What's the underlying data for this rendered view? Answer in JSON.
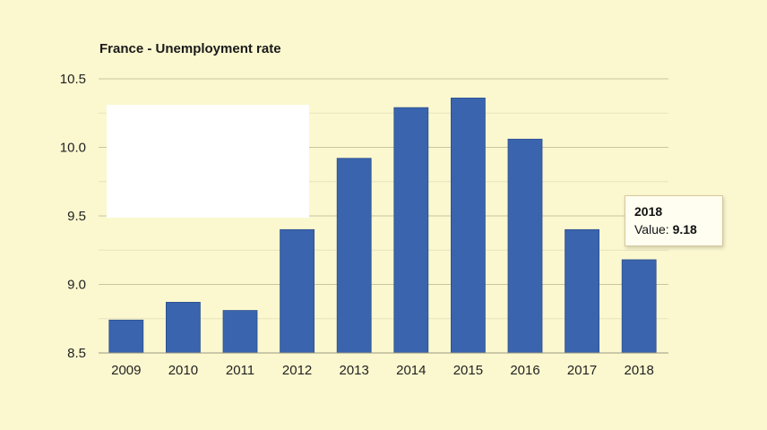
{
  "chart_data": {
    "type": "bar",
    "title": "France - Unemployment rate",
    "categories": [
      "2009",
      "2010",
      "2011",
      "2012",
      "2013",
      "2014",
      "2015",
      "2016",
      "2017",
      "2018"
    ],
    "values": [
      8.74,
      8.87,
      8.81,
      9.4,
      9.92,
      10.29,
      10.36,
      10.06,
      9.4,
      9.18
    ],
    "ylim": [
      8.5,
      10.5
    ],
    "yticks": [
      "10.5",
      "10.0",
      "9.5",
      "9.0",
      "8.5"
    ],
    "grid": true,
    "bar_color": "#3a64ad",
    "tooltip": {
      "title": "2018",
      "label": "Value:",
      "value": "9.18"
    }
  }
}
